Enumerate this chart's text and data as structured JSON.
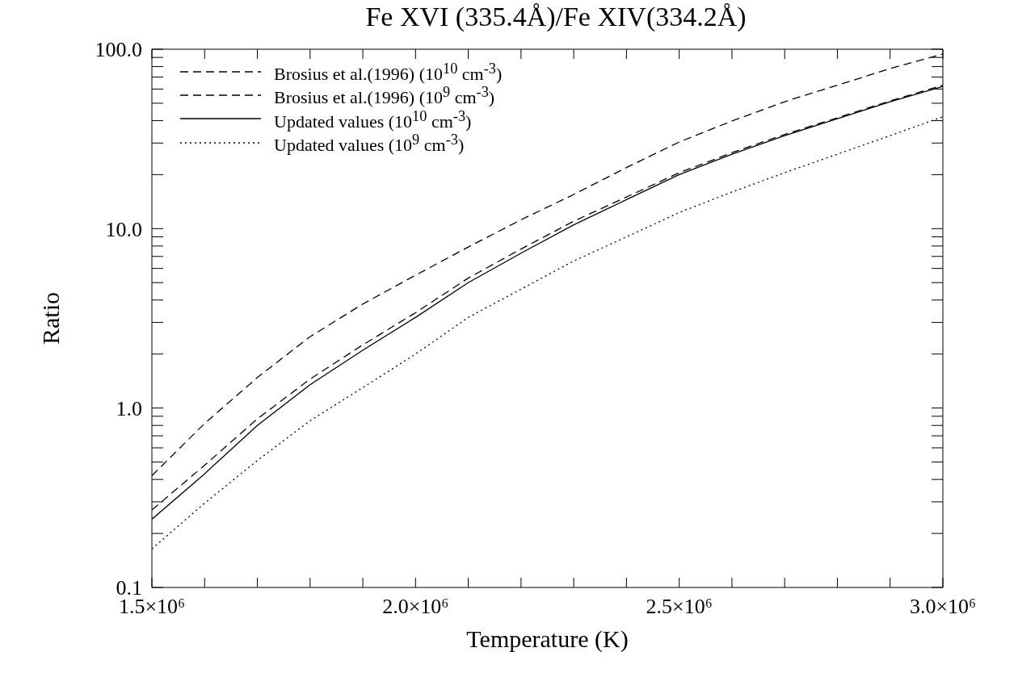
{
  "chart_data": {
    "type": "line",
    "title": "Fe XVI (335.4Å)/Fe XIV(334.2Å)",
    "xlabel": "Temperature (K)",
    "ylabel": "Ratio",
    "x": [
      1500000,
      1600000,
      1700000,
      1800000,
      1900000,
      2000000,
      2100000,
      2200000,
      2300000,
      2400000,
      2500000,
      2600000,
      2700000,
      2800000,
      2900000,
      3000000
    ],
    "series": [
      {
        "name": "Brosius et al.(1996) (10$^{10}$ cm$^{-3}$)",
        "color": "#000000",
        "line_style": "dashed",
        "values": [
          0.42,
          0.82,
          1.48,
          2.5,
          3.8,
          5.5,
          7.9,
          11.2,
          15.5,
          21.9,
          30.4,
          39.8,
          51,
          63,
          78,
          94
        ]
      },
      {
        "name": "Brosius et al.(1996) (10$^{9}$ cm$^{-3}$)",
        "color": "#000000",
        "line_style": "dashed",
        "values": [
          0.27,
          0.48,
          0.87,
          1.45,
          2.25,
          3.4,
          5.3,
          7.7,
          11,
          15,
          20.5,
          26.5,
          33.5,
          41.5,
          51.5,
          63
        ]
      },
      {
        "name": "Updated values (10$^{10}$ cm$^{-3}$)",
        "color": "#000000",
        "line_style": "solid",
        "values": [
          0.24,
          0.43,
          0.8,
          1.35,
          2.1,
          3.2,
          5,
          7.3,
          10.5,
          14.5,
          20,
          26,
          33,
          41,
          51,
          62
        ]
      },
      {
        "name": "Updated values (10$^{9}$ cm$^{-3}$)",
        "color": "#000000",
        "line_style": "dotted",
        "values": [
          0.164,
          0.295,
          0.51,
          0.85,
          1.3,
          2,
          3.2,
          4.6,
          6.6,
          9,
          12.3,
          16,
          20.5,
          26,
          33,
          42
        ]
      }
    ],
    "xlim": [
      1500000,
      3000000
    ],
    "xticks": [
      {
        "value": 1500000,
        "label": "1.5×10⁶"
      },
      {
        "value": 1600000,
        "label": null
      },
      {
        "value": 1700000,
        "label": null
      },
      {
        "value": 1800000,
        "label": null
      },
      {
        "value": 1900000,
        "label": null
      },
      {
        "value": 2000000,
        "label": "2.0×10⁶"
      },
      {
        "value": 2100000,
        "label": null
      },
      {
        "value": 2200000,
        "label": null
      },
      {
        "value": 2300000,
        "label": null
      },
      {
        "value": 2400000,
        "label": null
      },
      {
        "value": 2500000,
        "label": "2.5×10⁶"
      },
      {
        "value": 2600000,
        "label": null
      },
      {
        "value": 2700000,
        "label": null
      },
      {
        "value": 2800000,
        "label": null
      },
      {
        "value": 2900000,
        "label": null
      },
      {
        "value": 3000000,
        "label": "3.0×10⁶"
      }
    ],
    "ylim": [
      0.1,
      100
    ],
    "yticks": [
      {
        "value": 0.1,
        "label": "0.1"
      },
      {
        "value": 0.2,
        "label": null
      },
      {
        "value": 0.3,
        "label": null
      },
      {
        "value": 0.4,
        "label": null
      },
      {
        "value": 0.5,
        "label": null
      },
      {
        "value": 0.6,
        "label": null
      },
      {
        "value": 0.7,
        "label": null
      },
      {
        "value": 0.8,
        "label": null
      },
      {
        "value": 0.9,
        "label": null
      },
      {
        "value": 1,
        "label": "1.0"
      },
      {
        "value": 2,
        "label": null
      },
      {
        "value": 3,
        "label": null
      },
      {
        "value": 4,
        "label": null
      },
      {
        "value": 5,
        "label": null
      },
      {
        "value": 6,
        "label": null
      },
      {
        "value": 7,
        "label": null
      },
      {
        "value": 8,
        "label": null
      },
      {
        "value": 9,
        "label": null
      },
      {
        "value": 10,
        "label": "10.0"
      },
      {
        "value": 20,
        "label": null
      },
      {
        "value": 30,
        "label": null
      },
      {
        "value": 40,
        "label": null
      },
      {
        "value": 50,
        "label": null
      },
      {
        "value": 60,
        "label": null
      },
      {
        "value": 70,
        "label": null
      },
      {
        "value": 80,
        "label": null
      },
      {
        "value": 90,
        "label": null
      },
      {
        "value": 100,
        "label": "100.0"
      }
    ],
    "log": "y",
    "grid": false,
    "legend": "top left",
    "marker": "none"
  }
}
